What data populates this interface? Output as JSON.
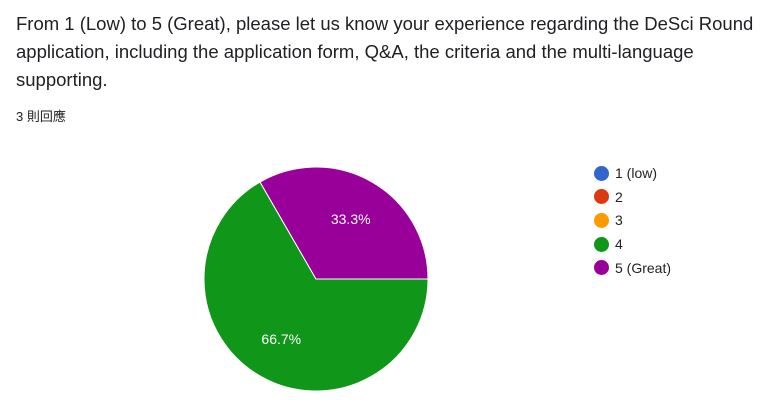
{
  "question": "From 1 (Low) to 5 (Great), please let us know your experience regarding the DeSci Round application, including the application form, Q&A, the criteria and the multi-language supporting.",
  "response_count": "3 則回應",
  "chart_data": {
    "type": "pie",
    "categories": [
      "1 (low)",
      "2",
      "3",
      "4",
      "5 (Great)"
    ],
    "values": [
      0,
      0,
      0,
      2,
      1
    ],
    "percent_labels": [
      "",
      "",
      "",
      "66.7%",
      "33.3%"
    ],
    "colors": [
      "#3366cc",
      "#dc3912",
      "#ff9900",
      "#109618",
      "#990099"
    ],
    "legend_position": "right"
  }
}
